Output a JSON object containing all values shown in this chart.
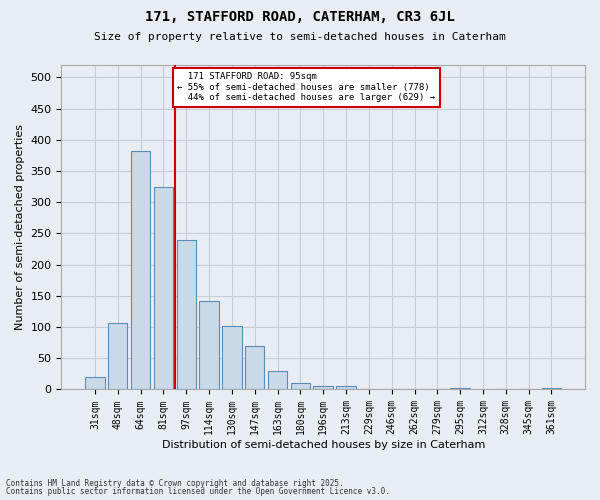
{
  "title_line1": "171, STAFFORD ROAD, CATERHAM, CR3 6JL",
  "title_line2": "Size of property relative to semi-detached houses in Caterham",
  "xlabel": "Distribution of semi-detached houses by size in Caterham",
  "ylabel": "Number of semi-detached properties",
  "categories": [
    "31sqm",
    "48sqm",
    "64sqm",
    "81sqm",
    "97sqm",
    "114sqm",
    "130sqm",
    "147sqm",
    "163sqm",
    "180sqm",
    "196sqm",
    "213sqm",
    "229sqm",
    "246sqm",
    "262sqm",
    "279sqm",
    "295sqm",
    "312sqm",
    "328sqm",
    "345sqm",
    "361sqm"
  ],
  "values": [
    20,
    107,
    382,
    325,
    240,
    141,
    101,
    69,
    30,
    10,
    6,
    6,
    0,
    0,
    0,
    0,
    2,
    0,
    0,
    0,
    2
  ],
  "bar_color": "#c9d9e8",
  "bar_edge_color": "#5a8db5",
  "grid_color": "#c8cdd6",
  "background_color": "#e8edf4",
  "property_line_x": 3.5,
  "property_label": "171 STAFFORD ROAD: 95sqm",
  "pct_smaller": "55% of semi-detached houses are smaller (778)",
  "pct_larger": "44% of semi-detached houses are larger (629)",
  "annotation_box_color": "#ffffff",
  "annotation_box_edge": "#cc0000",
  "property_line_color": "#cc0000",
  "footnote1": "Contains HM Land Registry data © Crown copyright and database right 2025.",
  "footnote2": "Contains public sector information licensed under the Open Government Licence v3.0.",
  "ylim": [
    0,
    520
  ],
  "yticks": [
    0,
    50,
    100,
    150,
    200,
    250,
    300,
    350,
    400,
    450,
    500
  ]
}
